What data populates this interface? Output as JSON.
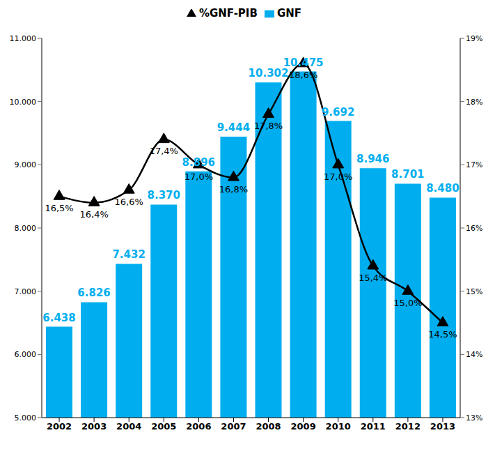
{
  "chart_data": {
    "type": "bar",
    "categories": [
      "2002",
      "2003",
      "2004",
      "2005",
      "2006",
      "2007",
      "2008",
      "2009",
      "2010",
      "2011",
      "2012",
      "2013"
    ],
    "series": [
      {
        "name": "GNF",
        "type": "bar",
        "color": "#00aeef",
        "values": [
          6438,
          6826,
          7432,
          8370,
          8896,
          9444,
          10302,
          10475,
          9692,
          8946,
          8701,
          8480
        ],
        "value_labels": [
          "6.438",
          "6.826",
          "7.432",
          "8.370",
          "8.896",
          "9.444",
          "10.302",
          "10.475",
          "9.692",
          "8.946",
          "8.701",
          "8.480"
        ]
      },
      {
        "name": "%GNF-PIB",
        "type": "line",
        "axis": "y2",
        "color": "#000000",
        "marker": "triangle",
        "line_style": "smooth",
        "values": [
          16.5,
          16.4,
          16.6,
          17.4,
          17.0,
          16.8,
          17.8,
          18.6,
          17.0,
          15.4,
          15.0,
          14.5
        ],
        "value_labels": [
          "16,5%",
          "16,4%",
          "16,6%",
          "17,4%",
          "17,0%",
          "16,8%",
          "17,8%",
          "18,6%",
          "17,0%",
          "15,4%",
          "15,0%",
          "14,5%"
        ]
      }
    ],
    "ylim": [
      5000,
      11000
    ],
    "yticks": [
      {
        "value": 5000,
        "label": "5.000"
      },
      {
        "value": 6000,
        "label": "6.000"
      },
      {
        "value": 7000,
        "label": "7.000"
      },
      {
        "value": 8000,
        "label": "8.000"
      },
      {
        "value": 9000,
        "label": "9.000"
      },
      {
        "value": 10000,
        "label": "10.000"
      },
      {
        "value": 11000,
        "label": "11.000"
      }
    ],
    "y2lim": [
      13,
      19
    ],
    "y2ticks": [
      {
        "value": 13,
        "label": "13%"
      },
      {
        "value": 14,
        "label": "14%"
      },
      {
        "value": 15,
        "label": "15%"
      },
      {
        "value": 16,
        "label": "16%"
      },
      {
        "value": 17,
        "label": "17%"
      },
      {
        "value": 18,
        "label": "18%"
      },
      {
        "value": 19,
        "label": "19%"
      }
    ],
    "grid": false,
    "legend": "top",
    "data_labels": true
  }
}
